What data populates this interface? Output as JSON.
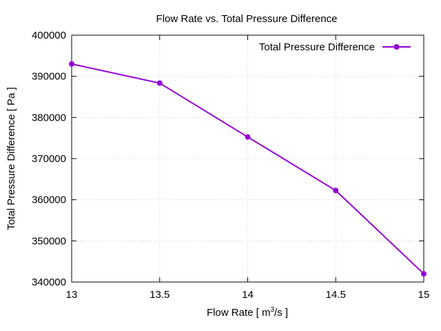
{
  "chart_data": {
    "type": "line",
    "title": "Flow Rate vs. Total Pressure Difference",
    "xlabel_main": "Flow Rate [ m",
    "xlabel_sup": "3",
    "xlabel_tail": "/s ]",
    "xlabel": "Flow Rate [ m³/s ]",
    "ylabel": "Total Pressure Difference [ Pa ]",
    "xlim": [
      13,
      15
    ],
    "ylim": [
      340000,
      400000
    ],
    "xticks": [
      13,
      13.5,
      14,
      14.5,
      15
    ],
    "xtick_labels": [
      "13",
      "13.5",
      "14",
      "14.5",
      "15"
    ],
    "yticks": [
      340000,
      350000,
      360000,
      370000,
      380000,
      390000,
      400000
    ],
    "ytick_labels": [
      "340000",
      "350000",
      "360000",
      "370000",
      "380000",
      "390000",
      "400000"
    ],
    "grid": true,
    "legend_position": "top-right",
    "series": [
      {
        "name": "Total Pressure Difference",
        "color": "#9400d3",
        "x": [
          13,
          13.5,
          14,
          14.5,
          15
        ],
        "values": [
          393000,
          388350,
          375250,
          362250,
          342000
        ]
      }
    ]
  }
}
